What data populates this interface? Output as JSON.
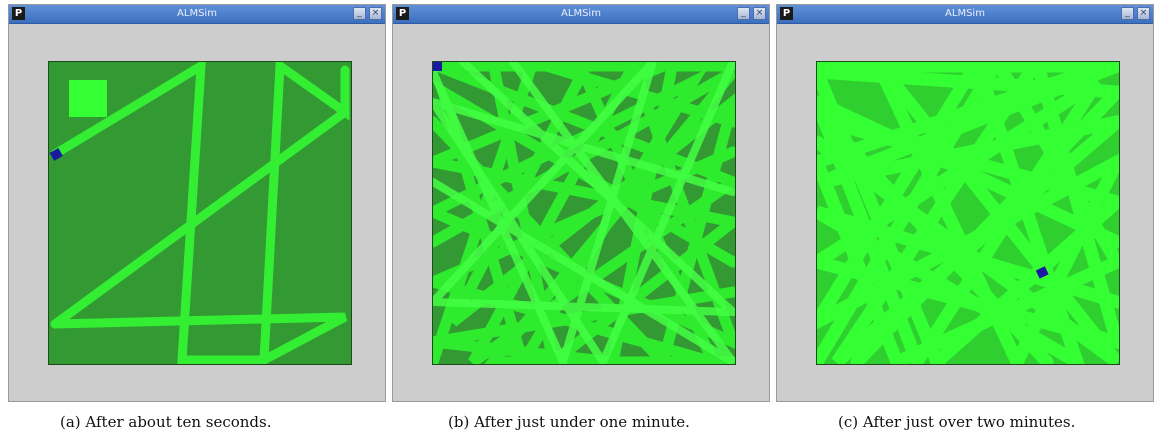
{
  "windows": [
    {
      "title": "ALMSim",
      "app_icon": "P",
      "minimize_label": "_",
      "close_label": "×",
      "robot_color": "#1a1aa0"
    },
    {
      "title": "ALMSim",
      "app_icon": "P",
      "minimize_label": "_",
      "close_label": "×",
      "robot_color": "#1a1aa0"
    },
    {
      "title": "ALMSim",
      "app_icon": "P",
      "minimize_label": "_",
      "close_label": "×",
      "robot_color": "#1a1aa0"
    }
  ],
  "captions": [
    "(a) After about ten seconds.",
    "(b) After just under one minute.",
    "(c) After just over two minutes."
  ],
  "colors": {
    "floor_dirty": "#339933",
    "floor_clean": "#33ff33",
    "robot": "#1a1aa0",
    "titlebar": "#4a7dcc"
  }
}
